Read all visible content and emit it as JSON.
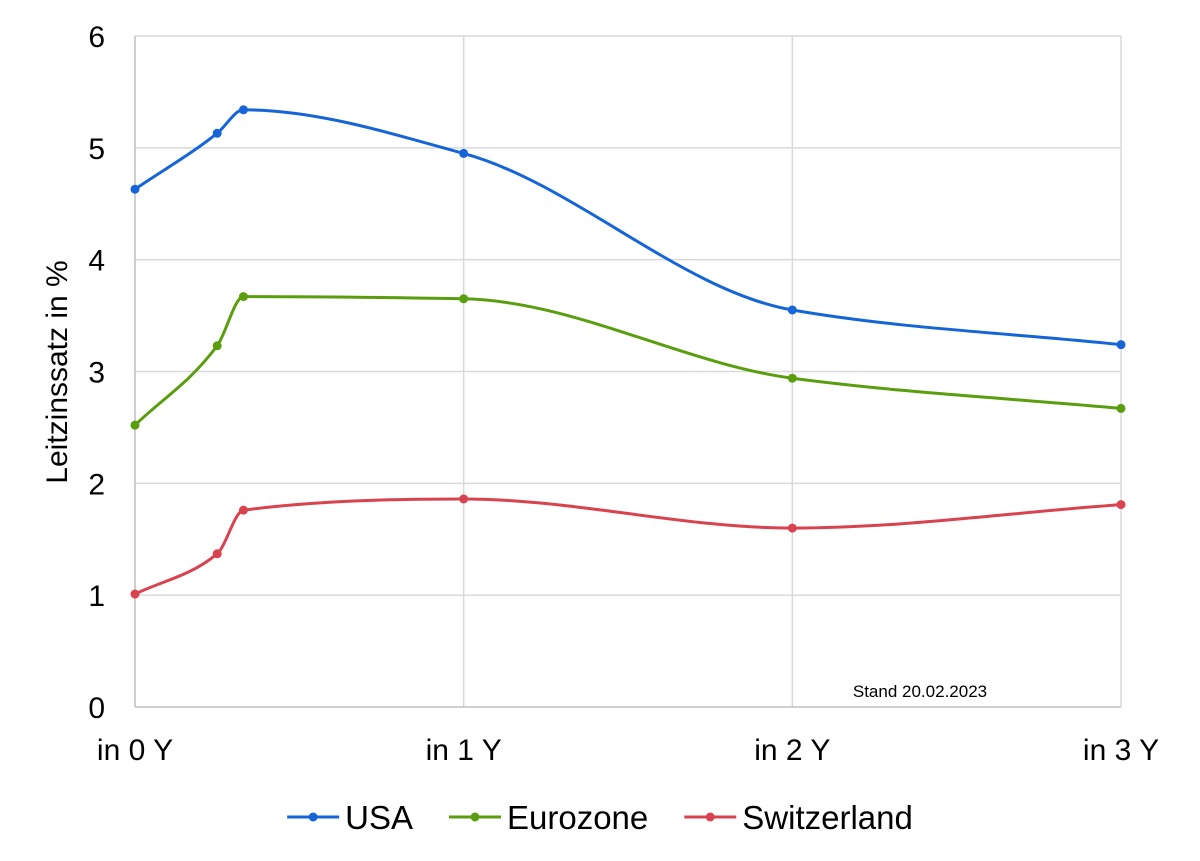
{
  "chart_data": {
    "type": "line",
    "ylabel": "Leitzinssatz in %",
    "xlabel": "",
    "x_tick_labels": [
      "in 0 Y",
      "in 1 Y",
      "in 2 Y",
      "in 3 Y"
    ],
    "xlim": [
      0,
      3
    ],
    "ylim": [
      0,
      6
    ],
    "y_ticks": [
      0,
      1,
      2,
      3,
      4,
      5,
      6
    ],
    "grid": true,
    "legend_position": "bottom",
    "annotation": "Stand 20.02.2023",
    "series": [
      {
        "name": "USA",
        "color": "#1565d8",
        "points": [
          [
            0,
            4.63
          ],
          [
            0.25,
            5.13
          ],
          [
            0.33,
            5.34
          ],
          [
            1,
            4.95
          ],
          [
            2,
            3.55
          ],
          [
            3,
            3.24
          ]
        ]
      },
      {
        "name": "Eurozone",
        "color": "#5a9e0f",
        "points": [
          [
            0,
            2.52
          ],
          [
            0.25,
            3.23
          ],
          [
            0.33,
            3.67
          ],
          [
            1,
            3.65
          ],
          [
            2,
            2.94
          ],
          [
            3,
            2.67
          ]
        ]
      },
      {
        "name": "Switzerland",
        "color": "#d9434f",
        "points": [
          [
            0,
            1.01
          ],
          [
            0.25,
            1.37
          ],
          [
            0.33,
            1.76
          ],
          [
            1,
            1.86
          ],
          [
            2,
            1.6
          ],
          [
            3,
            1.81
          ]
        ]
      }
    ]
  }
}
